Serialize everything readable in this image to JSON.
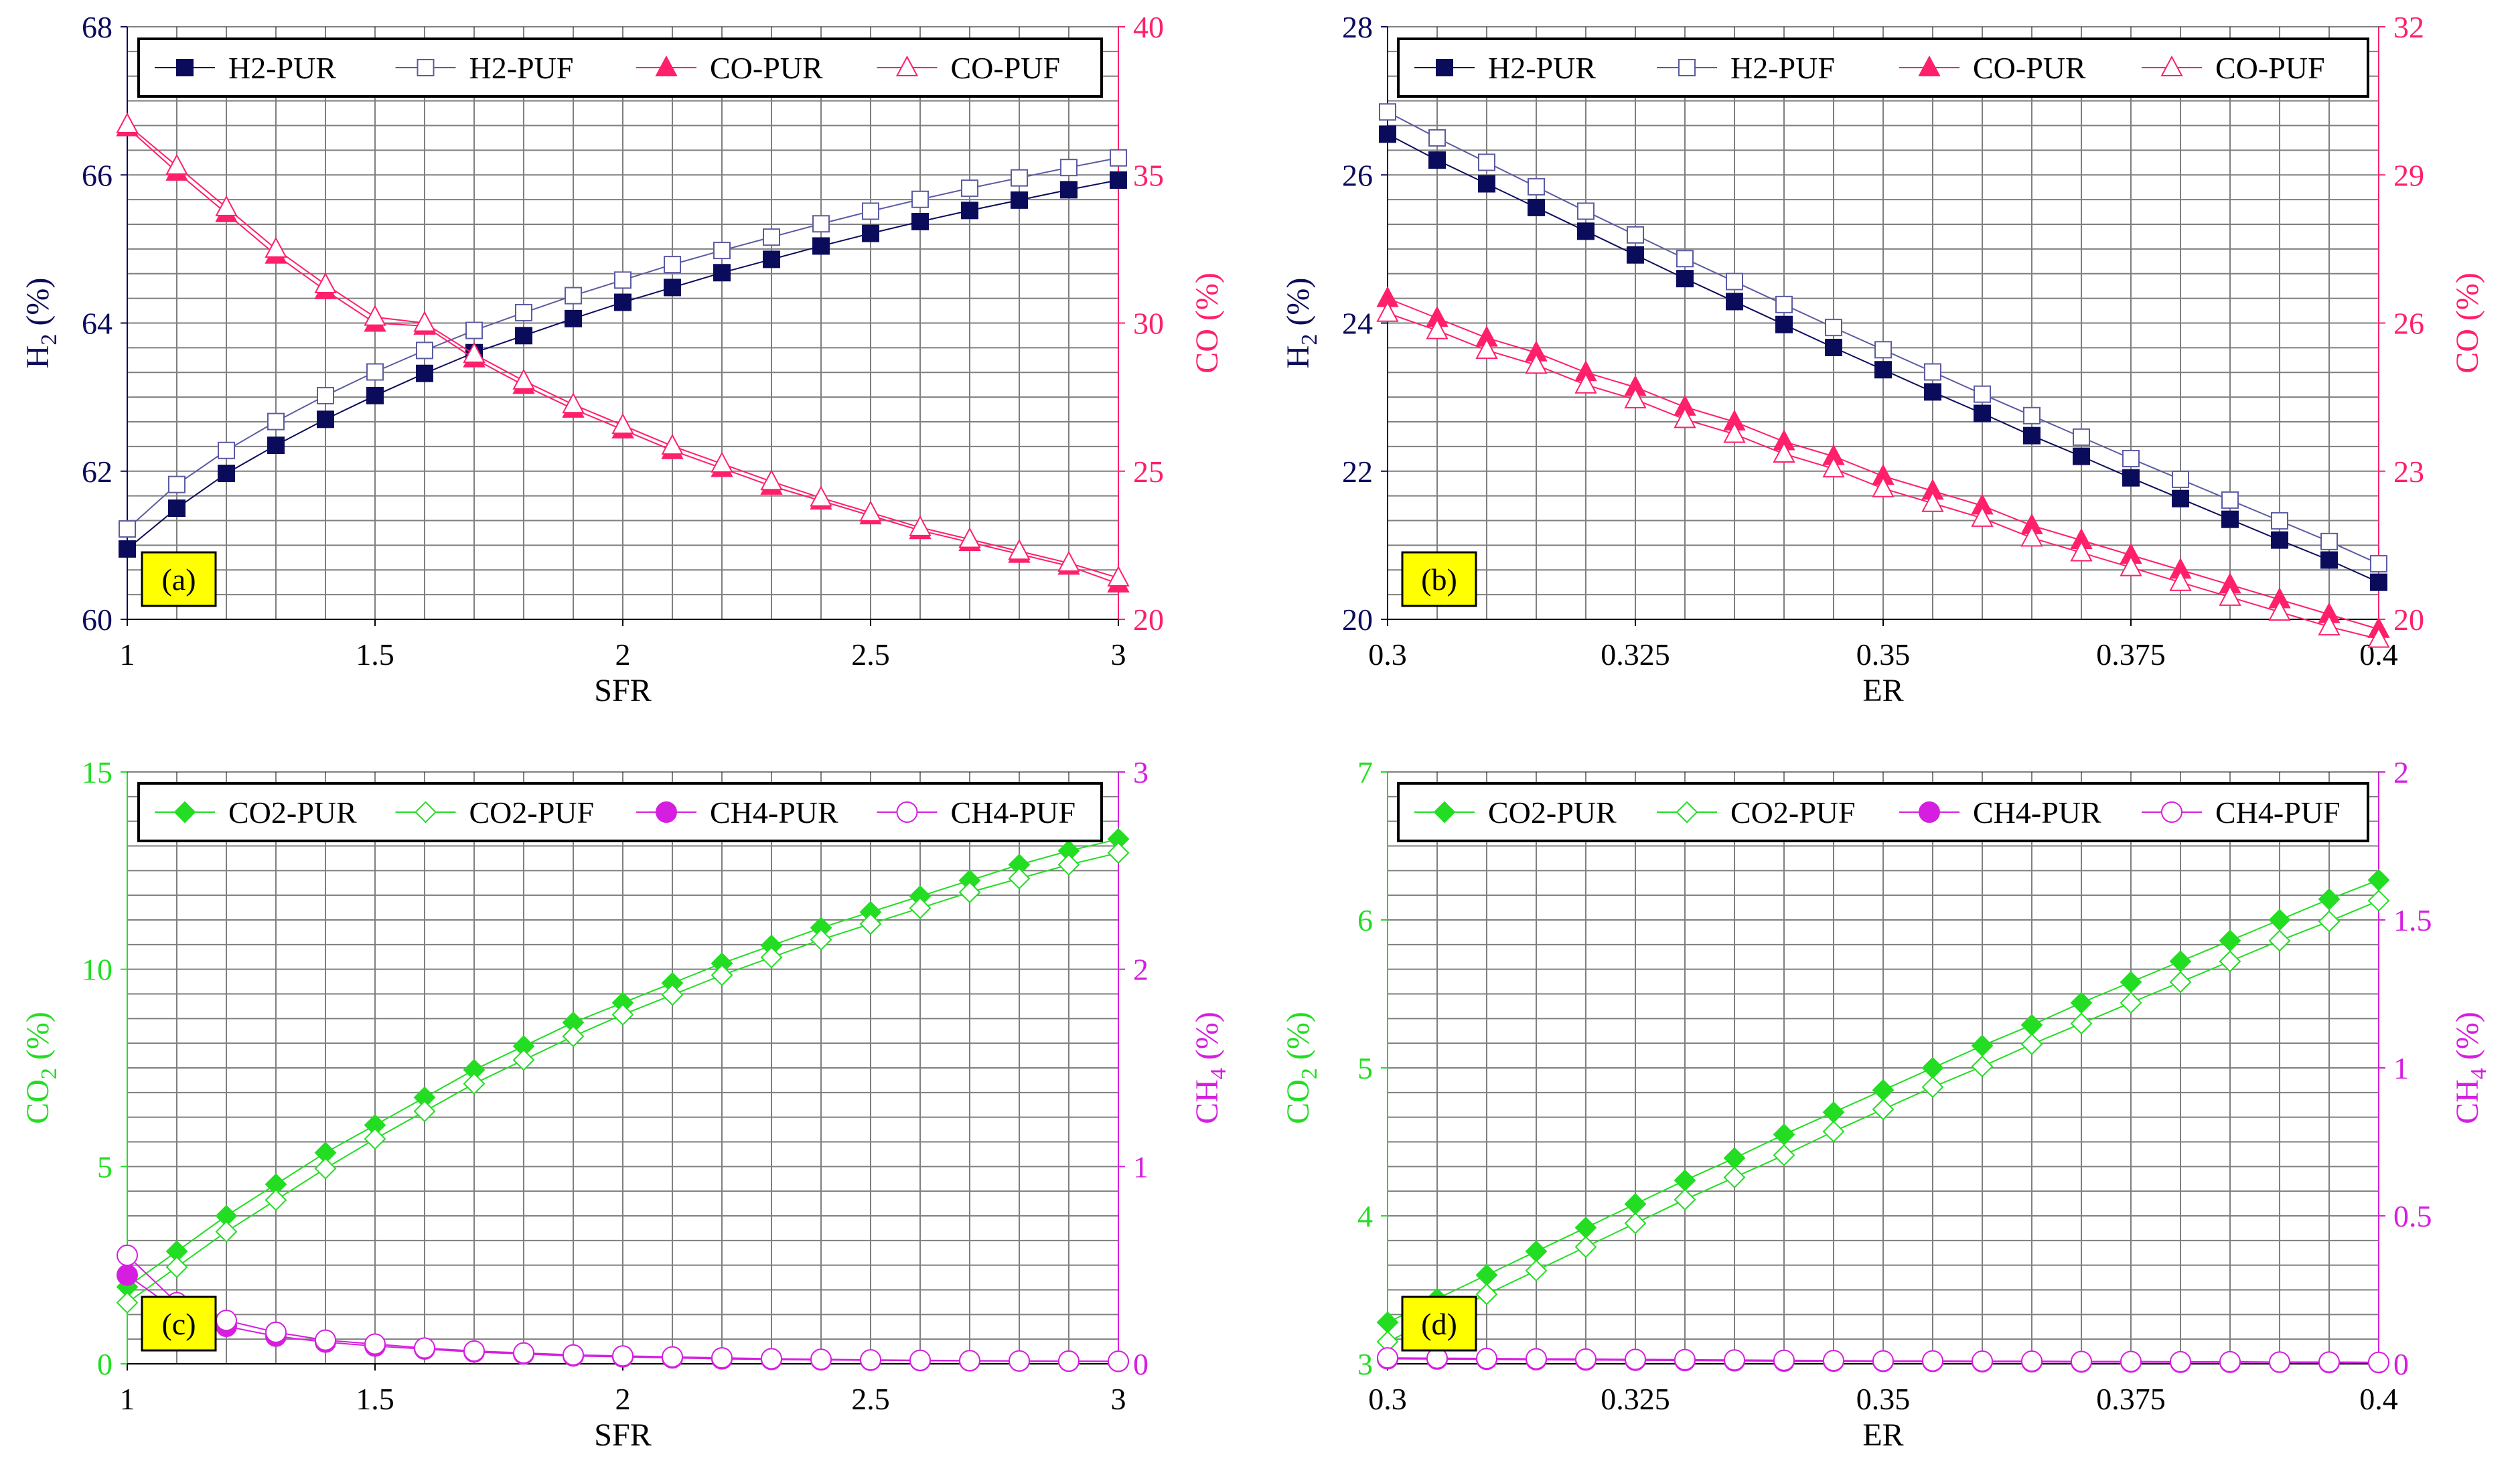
{
  "colors": {
    "h2_pur": "#0b0b5c",
    "h2_puf": "#5b5ba3",
    "co": "#ff1f6b",
    "co2": "#22dd22",
    "ch4": "#d61ee0",
    "grid": "#7f7f7f",
    "label_box": "#ffff00"
  },
  "chart_data": [
    {
      "type": "line",
      "panel_label": "(a)",
      "xlabel": "SFR",
      "ylabel_left": "H",
      "ylabel_left_sub": "2",
      "ylabel_left_unit": " (%)",
      "ylabel_right": "CO",
      "ylabel_right_sub": "",
      "ylabel_right_unit": " (%)",
      "xlim": [
        1,
        3
      ],
      "ylim_left": [
        60,
        68
      ],
      "ylim_right": [
        20,
        40
      ],
      "xticks": [
        1,
        1.5,
        2,
        2.5,
        3
      ],
      "xtick_labels": [
        "1",
        "1.5",
        "2",
        "2.5",
        "3"
      ],
      "yticks_left": [
        60,
        62,
        64,
        66,
        68
      ],
      "ytick_labels_left": [
        "60",
        "62",
        "64",
        "66",
        "68"
      ],
      "yticks_right": [
        20,
        25,
        30,
        35,
        40
      ],
      "ytick_labels_right": [
        "20",
        "25",
        "30",
        "35",
        "40"
      ],
      "legend": [
        "H2-PUR",
        "H2-PUF",
        "CO-PUR",
        "CO-PUF"
      ],
      "x": [
        1,
        1.1,
        1.2,
        1.3,
        1.4,
        1.5,
        1.6,
        1.7,
        1.8,
        1.9,
        2,
        2.1,
        2.2,
        2.3,
        2.4,
        2.5,
        2.6,
        2.7,
        2.8,
        2.9,
        3
      ],
      "series": [
        {
          "name": "H2-PUR",
          "axis": "left",
          "marker": "square",
          "filled": true,
          "color": "#0b0b5c",
          "values": [
            60.95,
            61.5,
            61.97,
            62.35,
            62.7,
            63.02,
            63.32,
            63.6,
            63.83,
            64.06,
            64.28,
            64.48,
            64.68,
            64.86,
            65.04,
            65.21,
            65.37,
            65.52,
            65.66,
            65.8,
            65.93
          ]
        },
        {
          "name": "H2-PUF",
          "axis": "left",
          "marker": "square",
          "filled": false,
          "color": "#5b5ba3",
          "values": [
            61.22,
            61.82,
            62.28,
            62.67,
            63.02,
            63.34,
            63.63,
            63.9,
            64.14,
            64.37,
            64.58,
            64.79,
            64.98,
            65.16,
            65.34,
            65.51,
            65.67,
            65.82,
            65.96,
            66.1,
            66.23
          ]
        },
        {
          "name": "CO-PUR",
          "axis": "right",
          "marker": "triangle",
          "filled": true,
          "color": "#ff1f6b",
          "values": [
            36.6,
            35.1,
            33.7,
            32.3,
            31.1,
            30.0,
            29.9,
            28.8,
            27.9,
            27.1,
            26.4,
            25.7,
            25.1,
            24.5,
            24.0,
            23.5,
            23.0,
            22.6,
            22.2,
            21.8,
            21.2
          ]
        },
        {
          "name": "CO-PUF",
          "axis": "right",
          "marker": "triangle",
          "filled": false,
          "color": "#ff1f6b",
          "values": [
            36.7,
            35.3,
            33.9,
            32.5,
            31.3,
            30.2,
            30.0,
            28.95,
            28.05,
            27.25,
            26.55,
            25.85,
            25.25,
            24.65,
            24.1,
            23.6,
            23.1,
            22.7,
            22.3,
            21.9,
            21.4
          ]
        }
      ]
    },
    {
      "type": "line",
      "panel_label": "(b)",
      "xlabel": "ER",
      "ylabel_left": "H",
      "ylabel_left_sub": "2",
      "ylabel_left_unit": " (%)",
      "ylabel_right": "CO",
      "ylabel_right_sub": "",
      "ylabel_right_unit": " (%)",
      "xlim": [
        0.3,
        0.4
      ],
      "ylim_left": [
        20,
        28
      ],
      "ylim_right": [
        20,
        32
      ],
      "xticks": [
        0.3,
        0.325,
        0.35,
        0.375,
        0.4
      ],
      "xtick_labels": [
        "0.3",
        "0.325",
        "0.35",
        "0.375",
        "0.4"
      ],
      "yticks_left": [
        20,
        22,
        24,
        26,
        28
      ],
      "ytick_labels_left": [
        "20",
        "22",
        "24",
        "26",
        "28"
      ],
      "yticks_right": [
        20,
        23,
        26,
        29,
        32
      ],
      "ytick_labels_right": [
        "20",
        "23",
        "26",
        "29",
        "32"
      ],
      "legend": [
        "H2-PUR",
        "H2-PUF",
        "CO-PUR",
        "CO-PUF"
      ],
      "x": [
        0.3,
        0.305,
        0.31,
        0.315,
        0.32,
        0.325,
        0.33,
        0.335,
        0.34,
        0.345,
        0.35,
        0.355,
        0.36,
        0.365,
        0.37,
        0.375,
        0.38,
        0.385,
        0.39,
        0.395,
        0.4
      ],
      "series": [
        {
          "name": "H2-PUR",
          "axis": "left",
          "marker": "square",
          "filled": true,
          "color": "#0b0b5c",
          "values": [
            26.55,
            26.2,
            25.88,
            25.56,
            25.24,
            24.92,
            24.6,
            24.29,
            23.98,
            23.67,
            23.37,
            23.07,
            22.78,
            22.48,
            22.2,
            21.91,
            21.63,
            21.35,
            21.07,
            20.8,
            20.5
          ]
        },
        {
          "name": "H2-PUF",
          "axis": "left",
          "marker": "square",
          "filled": false,
          "color": "#5b5ba3",
          "values": [
            26.85,
            26.5,
            26.17,
            25.84,
            25.51,
            25.19,
            24.87,
            24.56,
            24.25,
            23.94,
            23.64,
            23.34,
            23.04,
            22.75,
            22.46,
            22.17,
            21.89,
            21.61,
            21.33,
            21.05,
            20.75
          ]
        },
        {
          "name": "CO-PUR",
          "axis": "right",
          "marker": "triangle",
          "filled": true,
          "color": "#ff1f6b",
          "values": [
            26.5,
            26.1,
            25.7,
            25.4,
            25.0,
            24.7,
            24.3,
            24.0,
            23.6,
            23.3,
            22.9,
            22.6,
            22.3,
            21.9,
            21.6,
            21.3,
            21.0,
            20.7,
            20.4,
            20.1,
            19.8
          ]
        },
        {
          "name": "CO-PUF",
          "axis": "right",
          "marker": "triangle",
          "filled": false,
          "color": "#ff1f6b",
          "values": [
            26.2,
            25.85,
            25.45,
            25.15,
            24.75,
            24.45,
            24.05,
            23.75,
            23.35,
            23.05,
            22.65,
            22.35,
            22.05,
            21.65,
            21.35,
            21.05,
            20.75,
            20.45,
            20.15,
            19.85,
            19.6
          ]
        }
      ]
    },
    {
      "type": "line",
      "panel_label": "(c)",
      "xlabel": "SFR",
      "ylabel_left": "CO",
      "ylabel_left_sub": "2",
      "ylabel_left_unit": " (%)",
      "ylabel_right": "CH",
      "ylabel_right_sub": "4",
      "ylabel_right_unit": " (%)",
      "xlim": [
        1,
        3
      ],
      "ylim_left": [
        0,
        15
      ],
      "ylim_right": [
        0,
        3
      ],
      "xticks": [
        1,
        1.5,
        2,
        2.5,
        3
      ],
      "xtick_labels": [
        "1",
        "1.5",
        "2",
        "2.5",
        "3"
      ],
      "yticks_left": [
        0,
        5,
        10,
        15
      ],
      "ytick_labels_left": [
        "0",
        "5",
        "10",
        "15"
      ],
      "yticks_right": [
        0,
        1,
        2,
        3
      ],
      "ytick_labels_right": [
        "0",
        "1",
        "2",
        "3"
      ],
      "legend": [
        "CO2-PUR",
        "CO2-PUF",
        "CH4-PUR",
        "CH4-PUF"
      ],
      "x": [
        1,
        1.1,
        1.2,
        1.3,
        1.4,
        1.5,
        1.6,
        1.7,
        1.8,
        1.9,
        2,
        2.1,
        2.2,
        2.3,
        2.4,
        2.5,
        2.6,
        2.7,
        2.8,
        2.9,
        3
      ],
      "series": [
        {
          "name": "CO2-PUR",
          "axis": "left",
          "marker": "diamond",
          "filled": true,
          "color": "#22dd22",
          "values": [
            1.95,
            2.85,
            3.75,
            4.55,
            5.35,
            6.05,
            6.75,
            7.45,
            8.05,
            8.65,
            9.15,
            9.65,
            10.15,
            10.6,
            11.05,
            11.45,
            11.85,
            12.25,
            12.65,
            13.0,
            13.3
          ]
        },
        {
          "name": "CO2-PUF",
          "axis": "left",
          "marker": "diamond",
          "filled": false,
          "color": "#22dd22",
          "values": [
            1.55,
            2.45,
            3.35,
            4.15,
            4.95,
            5.7,
            6.4,
            7.1,
            7.7,
            8.3,
            8.85,
            9.35,
            9.85,
            10.3,
            10.75,
            11.15,
            11.55,
            11.95,
            12.3,
            12.65,
            12.95
          ]
        },
        {
          "name": "CH4-PUR",
          "axis": "right",
          "marker": "circle",
          "filled": true,
          "color": "#d61ee0",
          "values": [
            0.45,
            0.27,
            0.19,
            0.14,
            0.11,
            0.09,
            0.075,
            0.06,
            0.05,
            0.04,
            0.035,
            0.03,
            0.025,
            0.022,
            0.02,
            0.018,
            0.016,
            0.015,
            0.014,
            0.013,
            0.012
          ]
        },
        {
          "name": "CH4-PUF",
          "axis": "right",
          "marker": "circle",
          "filled": false,
          "color": "#d61ee0",
          "values": [
            0.55,
            0.31,
            0.22,
            0.16,
            0.12,
            0.1,
            0.08,
            0.065,
            0.055,
            0.045,
            0.04,
            0.035,
            0.03,
            0.026,
            0.023,
            0.02,
            0.018,
            0.016,
            0.015,
            0.014,
            0.013
          ]
        }
      ]
    },
    {
      "type": "line",
      "panel_label": "(d)",
      "xlabel": "ER",
      "ylabel_left": "CO",
      "ylabel_left_sub": "2",
      "ylabel_left_unit": " (%)",
      "ylabel_right": "CH",
      "ylabel_right_sub": "4",
      "ylabel_right_unit": " (%)",
      "xlim": [
        0.3,
        0.4
      ],
      "ylim_left": [
        3,
        7
      ],
      "ylim_right": [
        0,
        2
      ],
      "xticks": [
        0.3,
        0.325,
        0.35,
        0.375,
        0.4
      ],
      "xtick_labels": [
        "0.3",
        "0.325",
        "0.35",
        "0.375",
        "0.4"
      ],
      "yticks_left": [
        3,
        4,
        5,
        6,
        7
      ],
      "ytick_labels_left": [
        "3",
        "4",
        "5",
        "6",
        "7"
      ],
      "yticks_right": [
        0,
        0.5,
        1,
        1.5,
        2
      ],
      "ytick_labels_right": [
        "0",
        "0.5",
        "1",
        "1.5",
        "2"
      ],
      "legend": [
        "CO2-PUR",
        "CO2-PUF",
        "CH4-PUR",
        "CH4-PUF"
      ],
      "x": [
        0.3,
        0.305,
        0.31,
        0.315,
        0.32,
        0.325,
        0.33,
        0.335,
        0.34,
        0.345,
        0.35,
        0.355,
        0.36,
        0.365,
        0.37,
        0.375,
        0.38,
        0.385,
        0.39,
        0.395,
        0.4
      ],
      "series": [
        {
          "name": "CO2-PUR",
          "axis": "left",
          "marker": "diamond",
          "filled": true,
          "color": "#22dd22",
          "values": [
            3.28,
            3.44,
            3.6,
            3.76,
            3.92,
            4.08,
            4.24,
            4.39,
            4.55,
            4.7,
            4.85,
            5.0,
            5.15,
            5.29,
            5.44,
            5.58,
            5.72,
            5.86,
            6.0,
            6.14,
            6.27
          ]
        },
        {
          "name": "CO2-PUF",
          "axis": "left",
          "marker": "diamond",
          "filled": false,
          "color": "#22dd22",
          "values": [
            3.15,
            3.31,
            3.47,
            3.63,
            3.79,
            3.95,
            4.11,
            4.26,
            4.41,
            4.57,
            4.72,
            4.87,
            5.01,
            5.16,
            5.3,
            5.44,
            5.58,
            5.72,
            5.86,
            5.99,
            6.13
          ]
        },
        {
          "name": "CH4-PUR",
          "axis": "right",
          "marker": "circle",
          "filled": true,
          "color": "#d61ee0",
          "values": [
            0.017,
            0.016,
            0.015,
            0.014,
            0.013,
            0.012,
            0.011,
            0.01,
            0.009,
            0.009,
            0.008,
            0.008,
            0.007,
            0.007,
            0.006,
            0.006,
            0.005,
            0.005,
            0.005,
            0.004,
            0.004
          ]
        },
        {
          "name": "CH4-PUF",
          "axis": "right",
          "marker": "circle",
          "filled": false,
          "color": "#d61ee0",
          "values": [
            0.02,
            0.019,
            0.018,
            0.017,
            0.016,
            0.015,
            0.014,
            0.013,
            0.012,
            0.011,
            0.01,
            0.01,
            0.009,
            0.009,
            0.008,
            0.008,
            0.007,
            0.007,
            0.006,
            0.006,
            0.005
          ]
        }
      ]
    }
  ]
}
